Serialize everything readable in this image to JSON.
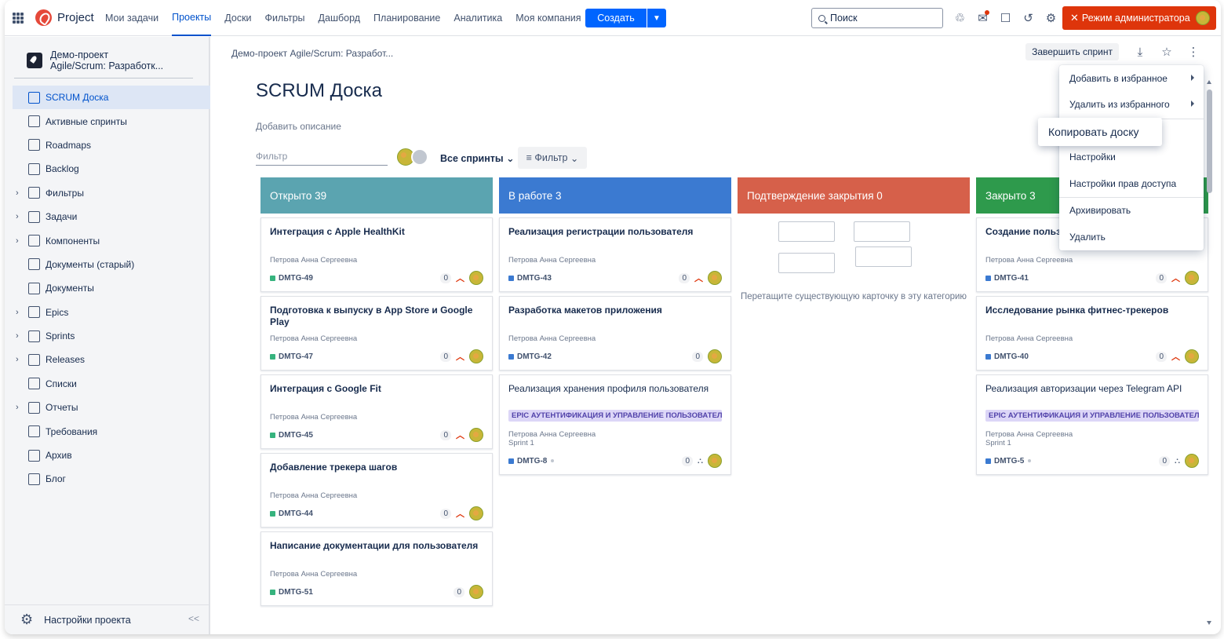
{
  "topbar": {
    "brand": "Project",
    "nav": [
      "Мои задачи",
      "Проекты",
      "Доски",
      "Фильтры",
      "Дашборд",
      "Планирование",
      "Аналитика",
      "Моя компания"
    ],
    "active_nav": "Проекты",
    "create_label": "Создать",
    "search_placeholder": "Поиск",
    "admin_label": "Режим администратора",
    "admin_color": "#de350b",
    "icons": [
      "apps-grid-icon",
      "project-logo-icon",
      "tree-icon",
      "notification-icon",
      "note-icon",
      "history-icon",
      "gear-icon"
    ]
  },
  "sidebar": {
    "project_line1": "Демо-проект",
    "project_line2": "Agile/Scrum: Разработк...",
    "items": [
      {
        "label": "SCRUM Доска",
        "icon": "board-icon",
        "active": true,
        "expandable": false
      },
      {
        "label": "Активные спринты",
        "icon": "board-icon",
        "active": false,
        "expandable": false
      },
      {
        "label": "Roadmaps",
        "icon": "roadmap-icon",
        "active": false,
        "expandable": false
      },
      {
        "label": "Backlog",
        "icon": "backlog-icon",
        "active": false,
        "expandable": false
      },
      {
        "label": "Фильтры",
        "icon": "filter-icon",
        "active": false,
        "expandable": true
      },
      {
        "label": "Задачи",
        "icon": "checkbox-icon",
        "active": false,
        "expandable": true
      },
      {
        "label": "Компоненты",
        "icon": "folder-icon",
        "active": false,
        "expandable": true
      },
      {
        "label": "Документы (старый)",
        "icon": "document-icon",
        "active": false,
        "expandable": false
      },
      {
        "label": "Документы",
        "icon": "document-icon",
        "active": false,
        "expandable": false
      },
      {
        "label": "Epics",
        "icon": "target-icon",
        "active": false,
        "expandable": true
      },
      {
        "label": "Sprints",
        "icon": "sprint-icon",
        "active": false,
        "expandable": true
      },
      {
        "label": "Releases",
        "icon": "rocket-icon",
        "active": false,
        "expandable": true
      },
      {
        "label": "Списки",
        "icon": "list-icon",
        "active": false,
        "expandable": false
      },
      {
        "label": "Отчеты",
        "icon": "chart-icon",
        "active": false,
        "expandable": true
      },
      {
        "label": "Требования",
        "icon": "requirements-icon",
        "active": false,
        "expandable": false
      },
      {
        "label": "Архив",
        "icon": "archive-icon",
        "active": false,
        "expandable": false
      },
      {
        "label": "Блог",
        "icon": "document-icon",
        "active": false,
        "expandable": false
      }
    ],
    "footer_label": "Настройки проекта",
    "collapse_symbol": "<<"
  },
  "main": {
    "breadcrumb": "Демо-проект Agile/Scrum: Разработ...",
    "finish_sprint": "Завершить спринт",
    "title": "SCRUM Доска",
    "add_description": "Добавить описание",
    "filter_placeholder": "Фильтр",
    "sprints_dropdown": "Все спринты",
    "filter_button": "Фильтр"
  },
  "columns": [
    {
      "header": "Открыто 39",
      "color": "#5ba4b0",
      "cards": [
        {
          "title": "Интеграция с Apple HealthKit",
          "bold": true,
          "assignee": "Петрова Анна Сергеевна",
          "key": "DMTG-49",
          "key_color": "#36b37e",
          "count": "0",
          "prio": true
        },
        {
          "title": "Подготовка к выпуску в App Store и Google Play",
          "bold": true,
          "assignee": "Петрова Анна Сергеевна",
          "key": "DMTG-47",
          "key_color": "#36b37e",
          "count": "0",
          "prio": true
        },
        {
          "title": "Интеграция с Google Fit",
          "bold": true,
          "assignee": "Петрова Анна Сергеевна",
          "key": "DMTG-45",
          "key_color": "#36b37e",
          "count": "0",
          "prio": true
        },
        {
          "title": "Добавление трекера шагов",
          "bold": true,
          "assignee": "Петрова Анна Сергеевна",
          "key": "DMTG-44",
          "key_color": "#36b37e",
          "count": "0",
          "prio": true
        },
        {
          "title": "Написание документации для пользователя",
          "bold": true,
          "assignee": "Петрова Анна Сергеевна",
          "key": "DMTG-51",
          "key_color": "#36b37e",
          "count": "0",
          "prio": false
        }
      ]
    },
    {
      "header": "В работе 3",
      "color": "#3b7ad1",
      "cards": [
        {
          "title": "Реализация регистрации пользователя",
          "bold": true,
          "assignee": "Петрова Анна Сергеевна",
          "key": "DMTG-43",
          "key_color": "#3b7ad1",
          "count": "0",
          "prio": true
        },
        {
          "title": "Разработка макетов приложения",
          "bold": true,
          "assignee": "Петрова Анна Сергеевна",
          "key": "DMTG-42",
          "key_color": "#3b7ad1",
          "count": "0",
          "prio": false
        },
        {
          "title": "Реализация хранения профиля пользователя",
          "bold": false,
          "epic": "EPIC АУТЕНТИФИКАЦИЯ И УПРАВЛЕНИЕ ПОЛЬЗОВАТЕЛ...",
          "assignee": "Петрова Анна Сергеевна",
          "sprint": "Sprint 1",
          "key": "DMTG-8",
          "key_color": "#3b7ad1",
          "count": "0",
          "subtask": true
        }
      ]
    },
    {
      "header": "Подтверждение закрытия 0",
      "color": "#d6604a",
      "empty_text": "Перетащите существующую карточку в эту категорию"
    },
    {
      "header": "Закрыто 3",
      "color": "#2e9a4c",
      "cards": [
        {
          "title": "Создание пользов",
          "bold": true,
          "assignee": "Петрова Анна Сергеевна",
          "key": "DMTG-41",
          "key_color": "#3b7ad1",
          "count": "0",
          "prio": true
        },
        {
          "title": "Исследование рынка фитнес-трекеров",
          "bold": true,
          "assignee": "Петрова Анна Сергеевна",
          "key": "DMTG-40",
          "key_color": "#3b7ad1",
          "count": "0",
          "prio": true
        },
        {
          "title": "Реализация авторизации через Telegram API",
          "bold": false,
          "epic": "EPIC АУТЕНТИФИКАЦИЯ И УПРАВЛЕНИЕ ПОЛЬЗОВАТЕЛ...",
          "assignee": "Петрова Анна Сергеевна",
          "sprint": "Sprint 1",
          "key": "DMTG-5",
          "key_color": "#3b7ad1",
          "count": "0",
          "subtask": true
        }
      ]
    }
  ],
  "menu": {
    "items": [
      {
        "label": "Добавить в избранное",
        "submenu": true
      },
      {
        "label": "Удалить из избранного",
        "submenu": true
      },
      {
        "label": "Копировать доску",
        "submenu": false
      },
      {
        "label": "Настройки",
        "submenu": false
      },
      {
        "label": "Настройки прав доступа",
        "submenu": false
      },
      {
        "label": "Архивировать",
        "submenu": false
      },
      {
        "label": "Удалить",
        "submenu": false
      }
    ],
    "hover_tooltip": "Копировать доску"
  }
}
